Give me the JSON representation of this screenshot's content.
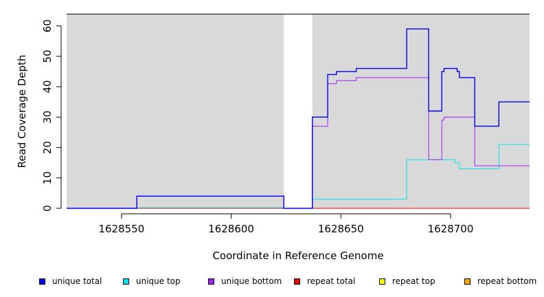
{
  "chart_data": {
    "type": "line",
    "title": "",
    "xlabel": "Coordinate in Reference Genome",
    "ylabel": "Read Coverage Depth",
    "xlim": [
      1628525,
      1628736
    ],
    "ylim": [
      0,
      64
    ],
    "x_ticks": [
      1628550,
      1628600,
      1628650,
      1628700
    ],
    "x_tick_labels": [
      "1628550",
      "1628600",
      "1628650",
      "1628700"
    ],
    "y_ticks": [
      0,
      10,
      20,
      30,
      40,
      50,
      60
    ],
    "y_tick_labels": [
      "0",
      "10",
      "20",
      "30",
      "40",
      "50",
      "60"
    ],
    "grid": false,
    "legend_position": "bottom",
    "background": {
      "shaded_color": "#d9d9d9",
      "gaps": [
        [
          1628624,
          1628637
        ]
      ]
    },
    "series": [
      {
        "name": "unique total",
        "color": "#0000ee",
        "points": [
          [
            1628525,
            0
          ],
          [
            1628557,
            0
          ],
          [
            1628557,
            4
          ],
          [
            1628624,
            4
          ],
          [
            1628624,
            0
          ],
          [
            1628637,
            0
          ],
          [
            1628637,
            30
          ],
          [
            1628644,
            30
          ],
          [
            1628644,
            44
          ],
          [
            1628648,
            44
          ],
          [
            1628648,
            45
          ],
          [
            1628657,
            45
          ],
          [
            1628657,
            46
          ],
          [
            1628680,
            46
          ],
          [
            1628680,
            59
          ],
          [
            1628690,
            59
          ],
          [
            1628690,
            32
          ],
          [
            1628696,
            32
          ],
          [
            1628696,
            45
          ],
          [
            1628697,
            45
          ],
          [
            1628697,
            46
          ],
          [
            1628703,
            46
          ],
          [
            1628703,
            45
          ],
          [
            1628704,
            45
          ],
          [
            1628704,
            43
          ],
          [
            1628711,
            43
          ],
          [
            1628711,
            27
          ],
          [
            1628722,
            27
          ],
          [
            1628722,
            35
          ],
          [
            1628736,
            35
          ]
        ]
      },
      {
        "name": "unique top",
        "color": "#00e5ee",
        "points": [
          [
            1628525,
            0
          ],
          [
            1628557,
            0
          ],
          [
            1628557,
            0.2
          ],
          [
            1628624,
            0.2
          ],
          [
            1628624,
            0
          ],
          [
            1628637,
            0
          ],
          [
            1628637,
            3
          ],
          [
            1628680,
            3
          ],
          [
            1628680,
            16
          ],
          [
            1628702,
            16
          ],
          [
            1628702,
            15
          ],
          [
            1628704,
            15
          ],
          [
            1628704,
            13
          ],
          [
            1628722,
            13
          ],
          [
            1628722,
            21
          ],
          [
            1628736,
            21
          ]
        ]
      },
      {
        "name": "unique bottom",
        "color": "#a020f0",
        "points": [
          [
            1628525,
            0
          ],
          [
            1628557,
            0
          ],
          [
            1628557,
            4
          ],
          [
            1628624,
            4
          ],
          [
            1628624,
            0
          ],
          [
            1628637,
            0
          ],
          [
            1628637,
            27
          ],
          [
            1628644,
            27
          ],
          [
            1628644,
            41
          ],
          [
            1628648,
            41
          ],
          [
            1628648,
            42
          ],
          [
            1628657,
            42
          ],
          [
            1628657,
            43
          ],
          [
            1628690,
            43
          ],
          [
            1628690,
            16
          ],
          [
            1628696,
            16
          ],
          [
            1628696,
            29
          ],
          [
            1628697,
            29
          ],
          [
            1628697,
            30
          ],
          [
            1628711,
            30
          ],
          [
            1628711,
            14
          ],
          [
            1628736,
            14
          ]
        ]
      },
      {
        "name": "repeat total",
        "color": "#ee0000",
        "points": [
          [
            1628525,
            0
          ],
          [
            1628736,
            0
          ]
        ]
      },
      {
        "name": "repeat top",
        "color": "#ffff00",
        "points": [
          [
            1628525,
            0
          ],
          [
            1628736,
            0
          ]
        ]
      },
      {
        "name": "repeat bottom",
        "color": "#ffa500",
        "points": [
          [
            1628525,
            0
          ],
          [
            1628736,
            0
          ]
        ]
      }
    ],
    "legend": [
      {
        "label": "unique total",
        "color": "#0000ee"
      },
      {
        "label": "unique top",
        "color": "#00e5ee"
      },
      {
        "label": "unique bottom",
        "color": "#a020f0"
      },
      {
        "label": "repeat total",
        "color": "#ee0000"
      },
      {
        "label": "repeat top",
        "color": "#ffff00"
      },
      {
        "label": "repeat bottom",
        "color": "#ffa500"
      }
    ]
  }
}
